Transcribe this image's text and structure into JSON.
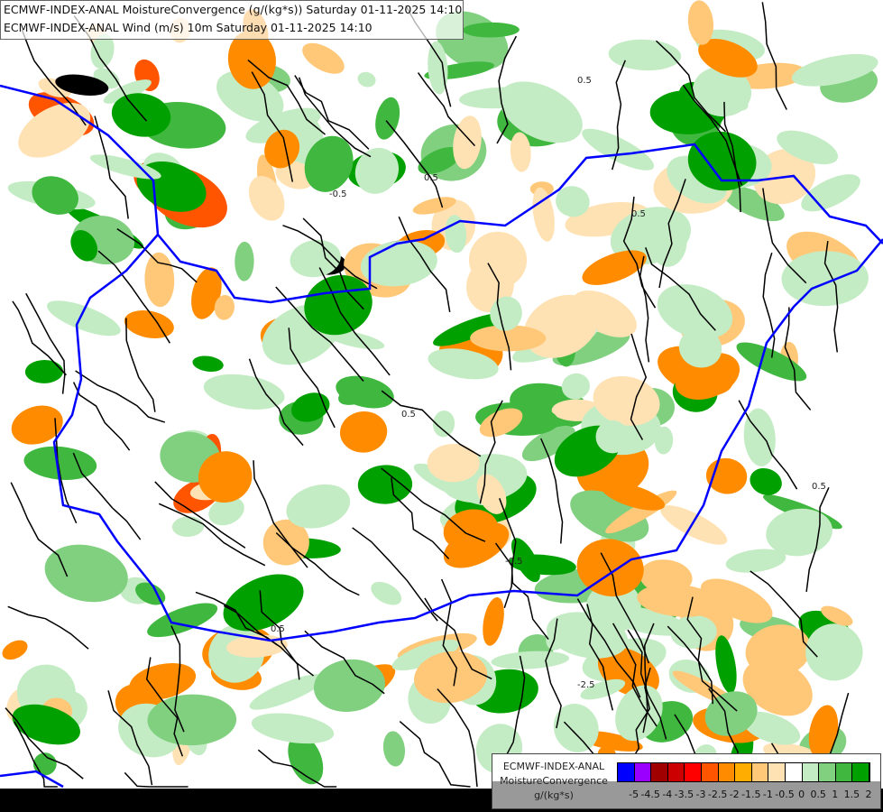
{
  "header": {
    "line1": "ECMWF-INDEX-ANAL MoistureConvergence (g/(kg*s)) Saturday 01-11-2025 14:10",
    "line2": "ECMWF-INDEX-ANAL Wind (m/s) 10m Saturday 01-11-2025 14:10"
  },
  "legend": {
    "model": "ECMWF-INDEX-ANAL",
    "parameter": "MoistureConvergence",
    "unit": "g/(kg*s)",
    "colors": [
      "#0000ff",
      "#9900ff",
      "#a00000",
      "#cc0000",
      "#ff0000",
      "#ff5500",
      "#ff8c00",
      "#ffad00",
      "#ffc878",
      "#ffe2b4",
      "#ffffff",
      "#c4ecc4",
      "#80d080",
      "#40b840",
      "#00a000"
    ],
    "labels": [
      "-5",
      "-4.5",
      "-4",
      "-3.5",
      "-3",
      "-2.5",
      "-2",
      "-1.5",
      "-1",
      "-0.5",
      "0",
      "0.5",
      "1",
      "1.5",
      "2"
    ]
  },
  "map": {
    "contour_labels": [
      "0.5",
      "0.5",
      "-0.5",
      "-0.5",
      "0.5",
      "-2.5",
      "0.5",
      "0.5",
      "0.5"
    ],
    "border_color": "#0000ff",
    "streamline_color": "#000000"
  }
}
